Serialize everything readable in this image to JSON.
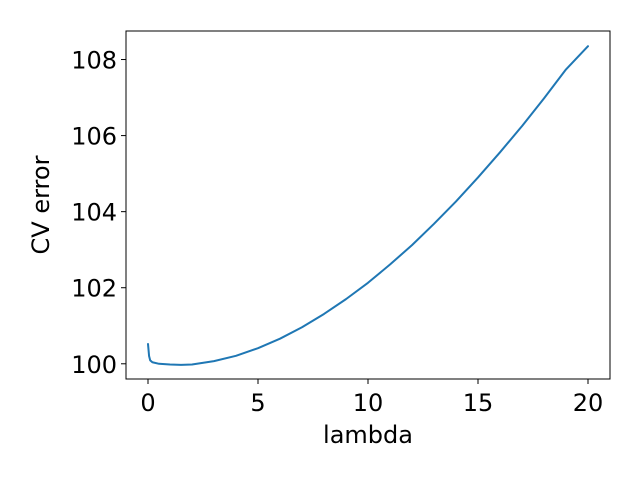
{
  "chart_data": {
    "type": "line",
    "title": "",
    "xlabel": "lambda",
    "ylabel": "CV error",
    "xlim": [
      -1.0,
      21.0
    ],
    "ylim": [
      99.6,
      108.75
    ],
    "xticks": [
      0,
      5,
      10,
      15,
      20
    ],
    "yticks": [
      100,
      102,
      104,
      106,
      108
    ],
    "grid": false,
    "legend": "none",
    "series": [
      {
        "color": "#1f77b4",
        "x": [
          0.0,
          0.05,
          0.1,
          0.2,
          0.5,
          1.0,
          1.5,
          2.0,
          3.0,
          4.0,
          5.0,
          6.0,
          7.0,
          8.0,
          9.0,
          10.0,
          11.0,
          12.0,
          13.0,
          14.0,
          15.0,
          16.0,
          17.0,
          18.0,
          19.0,
          20.0
        ],
        "y": [
          100.52,
          100.2,
          100.09,
          100.04,
          100.0,
          99.98,
          99.97,
          99.98,
          100.07,
          100.21,
          100.41,
          100.66,
          100.96,
          101.31,
          101.7,
          102.13,
          102.61,
          103.12,
          103.68,
          104.27,
          104.9,
          105.56,
          106.25,
          106.98,
          107.74,
          108.35
        ]
      }
    ]
  }
}
